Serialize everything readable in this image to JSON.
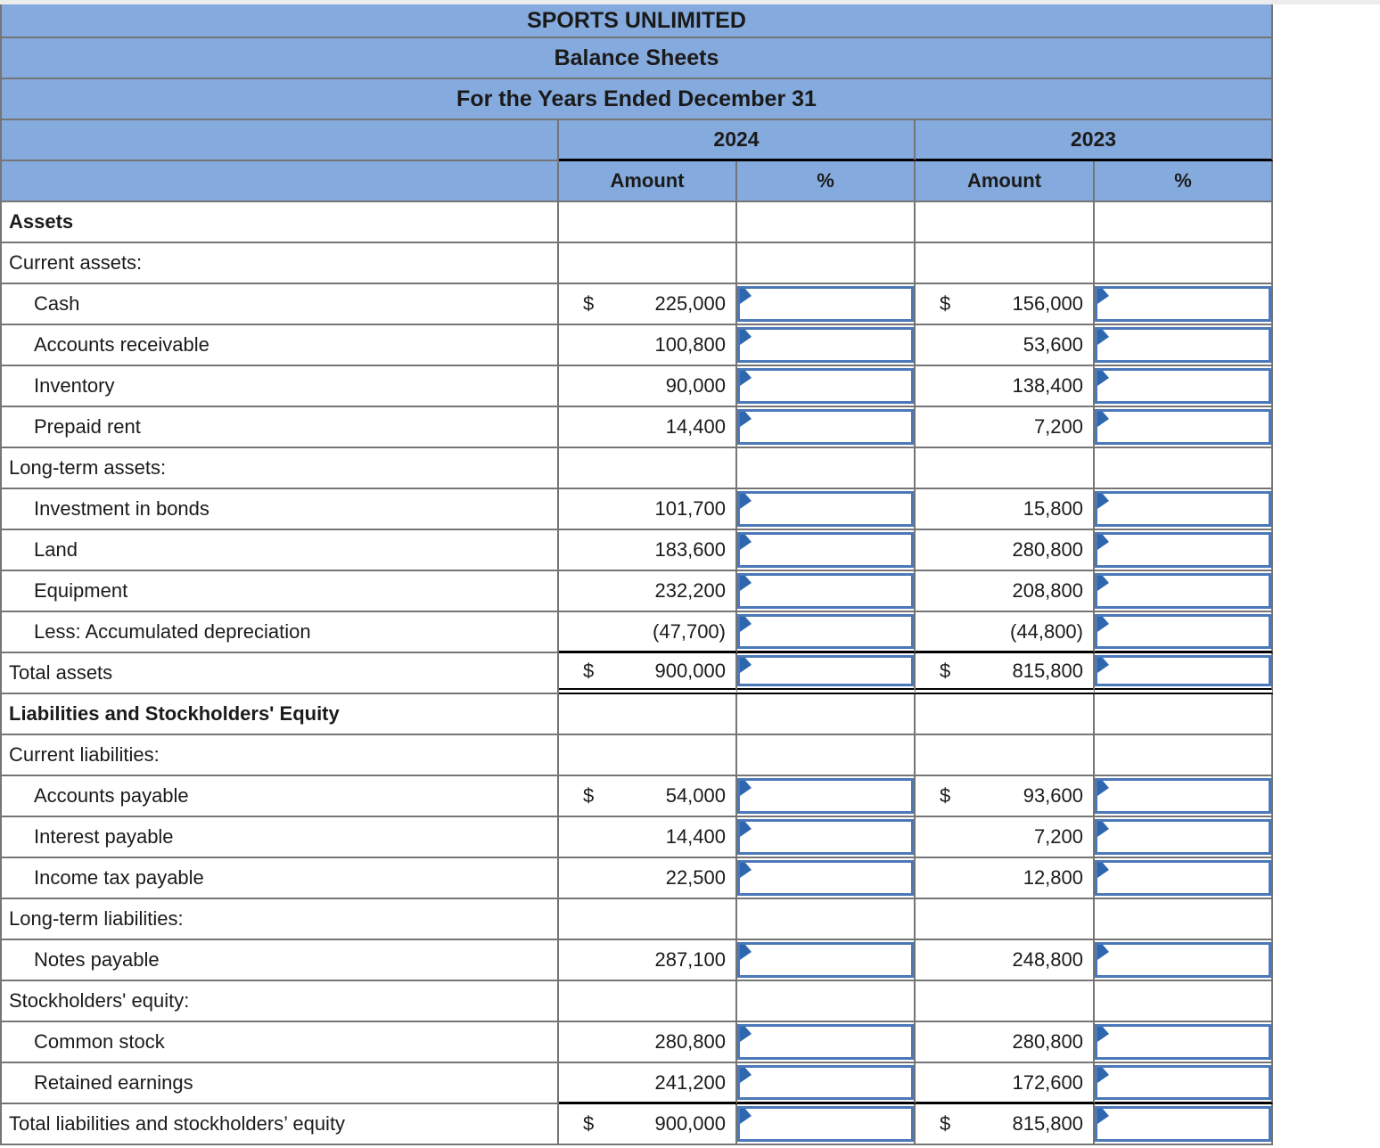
{
  "table": {
    "title_rows": [
      "SPORTS UNLIMITED",
      "Balance Sheets",
      "For the Years Ended December 31"
    ],
    "year_headers": [
      "2024",
      "2023"
    ],
    "column_headers": {
      "amount": "Amount",
      "percent": "%"
    },
    "colors": {
      "header_bg": "#85aadd",
      "grid_line": "#757575",
      "black_line": "#000000",
      "input_border": "#4a78b8",
      "flag_marker": "#2f67ae",
      "text": "#1b1b1b"
    },
    "rows": [
      {
        "label": "Assets",
        "type": "bold"
      },
      {
        "label": "Current assets:",
        "type": "category"
      },
      {
        "label": "Cash",
        "type": "item",
        "dollar_2024": "$",
        "amount_2024": "225,000",
        "dollar_2023": "$",
        "amount_2023": "156,000",
        "pct_2024_input": "",
        "pct_2023_input": ""
      },
      {
        "label": "Accounts receivable",
        "type": "item",
        "amount_2024": "100,800",
        "amount_2023": "53,600",
        "pct_2024_input": "",
        "pct_2023_input": ""
      },
      {
        "label": "Inventory",
        "type": "item",
        "amount_2024": "90,000",
        "amount_2023": "138,400",
        "pct_2024_input": "",
        "pct_2023_input": ""
      },
      {
        "label": "Prepaid rent",
        "type": "item",
        "amount_2024": "14,400",
        "amount_2023": "7,200",
        "pct_2024_input": "",
        "pct_2023_input": ""
      },
      {
        "label": "Long-term assets:",
        "type": "category"
      },
      {
        "label": "Investment in bonds",
        "type": "item",
        "amount_2024": "101,700",
        "amount_2023": "15,800",
        "pct_2024_input": "",
        "pct_2023_input": ""
      },
      {
        "label": "Land",
        "type": "item",
        "amount_2024": "183,600",
        "amount_2023": "280,800",
        "pct_2024_input": "",
        "pct_2023_input": ""
      },
      {
        "label": "Equipment",
        "type": "item",
        "amount_2024": "232,200",
        "amount_2023": "208,800",
        "pct_2024_input": "",
        "pct_2023_input": ""
      },
      {
        "label": "Less: Accumulated depreciation",
        "type": "item",
        "amount_2024": "(47,700)",
        "amount_2023": "(44,800)",
        "pct_2024_input": "",
        "pct_2023_input": "",
        "bottom_black": true
      },
      {
        "label": "Total assets",
        "type": "total",
        "dollar_2024": "$",
        "amount_2024": "900,000",
        "dollar_2023": "$",
        "amount_2023": "815,800",
        "pct_2024_input": "",
        "pct_2023_input": "",
        "bottom_double": true
      },
      {
        "label": "Liabilities and Stockholders' Equity",
        "type": "bold"
      },
      {
        "label": "Current liabilities:",
        "type": "category"
      },
      {
        "label": "Accounts payable",
        "type": "item",
        "dollar_2024": "$",
        "amount_2024": "54,000",
        "dollar_2023": "$",
        "amount_2023": "93,600",
        "pct_2024_input": "",
        "pct_2023_input": ""
      },
      {
        "label": "Interest payable",
        "type": "item",
        "amount_2024": "14,400",
        "amount_2023": "7,200",
        "pct_2024_input": "",
        "pct_2023_input": ""
      },
      {
        "label": "Income tax payable",
        "type": "item",
        "amount_2024": "22,500",
        "amount_2023": "12,800",
        "pct_2024_input": "",
        "pct_2023_input": ""
      },
      {
        "label": "Long-term liabilities:",
        "type": "category"
      },
      {
        "label": "Notes payable",
        "type": "item",
        "amount_2024": "287,100",
        "amount_2023": "248,800",
        "pct_2024_input": "",
        "pct_2023_input": ""
      },
      {
        "label": "Stockholders' equity:",
        "type": "category"
      },
      {
        "label": "Common stock",
        "type": "item",
        "amount_2024": "280,800",
        "amount_2023": "280,800",
        "pct_2024_input": "",
        "pct_2023_input": ""
      },
      {
        "label": "Retained earnings",
        "type": "item",
        "amount_2024": "241,200",
        "amount_2023": "172,600",
        "pct_2024_input": "",
        "pct_2023_input": "",
        "bottom_black": true
      },
      {
        "label": "Total liabilities and stockholders’ equity",
        "type": "total",
        "dollar_2024": "$",
        "amount_2024": "900,000",
        "dollar_2023": "$",
        "amount_2023": "815,800",
        "pct_2024_input": "",
        "pct_2023_input": ""
      }
    ]
  }
}
